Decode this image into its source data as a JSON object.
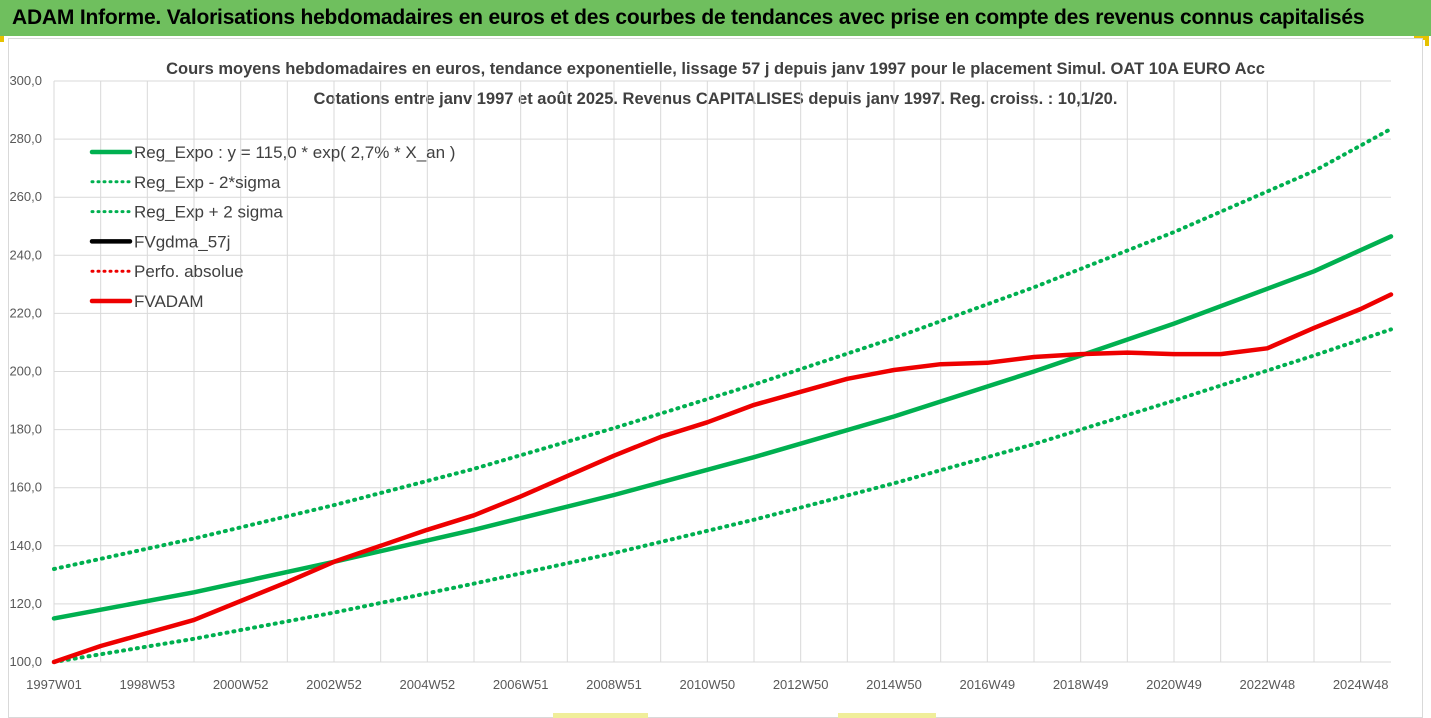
{
  "banner": {
    "title": "ADAM Informe. Valorisations hebdomadaires en euros et des courbes de tendances avec prise en compte des revenus connus capitalisés"
  },
  "colors": {
    "banner": "#6fbf5e",
    "green": "#00b050",
    "red": "#ee0000",
    "black": "#000000",
    "grid": "#d9d9d9"
  },
  "chart_data": {
    "type": "line",
    "title": "Cours moyens hebdomadaires en euros, tendance exponentielle, lissage 57 j depuis janv 1997 pour le placement Simul. OAT 10A EURO Acc",
    "subtitle": "Cotations entre janv 1997 et août 2025. Revenus CAPITALISES depuis janv 1997. Reg. croiss. : 10,1/20.",
    "ylim": [
      100,
      300
    ],
    "yticks": [
      "100,0",
      "120,0",
      "140,0",
      "160,0",
      "180,0",
      "200,0",
      "220,0",
      "240,0",
      "260,0",
      "280,0",
      "300,0"
    ],
    "xlim": [
      1997.0,
      2025.65
    ],
    "xticks": [
      {
        "label": "1997W01",
        "x": 1997.0
      },
      {
        "label": "1998W53",
        "x": 1999.0
      },
      {
        "label": "2000W52",
        "x": 2001.0
      },
      {
        "label": "2002W52",
        "x": 2003.0
      },
      {
        "label": "2004W52",
        "x": 2005.0
      },
      {
        "label": "2006W51",
        "x": 2007.0
      },
      {
        "label": "2008W51",
        "x": 2009.0
      },
      {
        "label": "2010W50",
        "x": 2011.0
      },
      {
        "label": "2012W50",
        "x": 2013.0
      },
      {
        "label": "2014W50",
        "x": 2015.0
      },
      {
        "label": "2016W49",
        "x": 2017.0
      },
      {
        "label": "2018W49",
        "x": 2019.0
      },
      {
        "label": "2020W49",
        "x": 2021.0
      },
      {
        "label": "2022W48",
        "x": 2023.0
      },
      {
        "label": "2024W48",
        "x": 2025.0
      }
    ],
    "legend_position": "top-left",
    "series": [
      {
        "name": "Reg_Expo : y = 115,0 * exp( 2,7% *  X_an )",
        "color": "#00b050",
        "style": "solid",
        "points": [
          [
            1997.0,
            115.0
          ],
          [
            2000.0,
            124.0
          ],
          [
            2003.0,
            134.5
          ],
          [
            2006.0,
            145.5
          ],
          [
            2009.0,
            157.5
          ],
          [
            2012.0,
            170.5
          ],
          [
            2015.0,
            184.5
          ],
          [
            2018.0,
            200.0
          ],
          [
            2021.0,
            216.5
          ],
          [
            2024.0,
            234.5
          ],
          [
            2025.65,
            246.5
          ]
        ]
      },
      {
        "name": "Reg_Exp - 2*sigma",
        "color": "#00b050",
        "style": "dotted",
        "points": [
          [
            1997.0,
            100.0
          ],
          [
            2000.0,
            108.0
          ],
          [
            2003.0,
            117.0
          ],
          [
            2006.0,
            127.0
          ],
          [
            2009.0,
            137.5
          ],
          [
            2012.0,
            149.0
          ],
          [
            2015.0,
            161.5
          ],
          [
            2018.0,
            175.0
          ],
          [
            2021.0,
            190.0
          ],
          [
            2024.0,
            205.5
          ],
          [
            2025.65,
            214.5
          ]
        ]
      },
      {
        "name": "Reg_Exp + 2 sigma",
        "color": "#00b050",
        "style": "dotted",
        "points": [
          [
            1997.0,
            132.0
          ],
          [
            2000.0,
            142.5
          ],
          [
            2003.0,
            154.0
          ],
          [
            2006.0,
            166.5
          ],
          [
            2009.0,
            180.5
          ],
          [
            2012.0,
            195.5
          ],
          [
            2015.0,
            211.5
          ],
          [
            2018.0,
            229.0
          ],
          [
            2021.0,
            248.0
          ],
          [
            2024.0,
            269.0
          ],
          [
            2025.65,
            283.5
          ]
        ]
      },
      {
        "name": "FVgdma_57j",
        "color": "#000000",
        "style": "solid",
        "points": []
      },
      {
        "name": "Perfo. absolue",
        "color": "#ee0000",
        "style": "dotted",
        "points": []
      },
      {
        "name": "FVADAM",
        "color": "#ee0000",
        "style": "solid",
        "points": [
          [
            1997.0,
            100.0
          ],
          [
            1998.0,
            105.5
          ],
          [
            1999.0,
            110.0
          ],
          [
            2000.0,
            114.5
          ],
          [
            2001.0,
            121.0
          ],
          [
            2002.0,
            127.5
          ],
          [
            2003.0,
            134.5
          ],
          [
            2004.0,
            140.0
          ],
          [
            2005.0,
            145.5
          ],
          [
            2006.0,
            150.5
          ],
          [
            2007.0,
            157.0
          ],
          [
            2008.0,
            164.0
          ],
          [
            2009.0,
            171.0
          ],
          [
            2010.0,
            177.5
          ],
          [
            2011.0,
            182.5
          ],
          [
            2012.0,
            188.5
          ],
          [
            2013.0,
            193.0
          ],
          [
            2014.0,
            197.5
          ],
          [
            2015.0,
            200.5
          ],
          [
            2016.0,
            202.5
          ],
          [
            2017.0,
            203.0
          ],
          [
            2018.0,
            205.0
          ],
          [
            2019.0,
            206.0
          ],
          [
            2020.0,
            206.5
          ],
          [
            2021.0,
            206.0
          ],
          [
            2022.0,
            206.0
          ],
          [
            2023.0,
            208.0
          ],
          [
            2024.0,
            215.0
          ],
          [
            2025.0,
            221.5
          ],
          [
            2025.65,
            226.5
          ]
        ]
      }
    ]
  }
}
